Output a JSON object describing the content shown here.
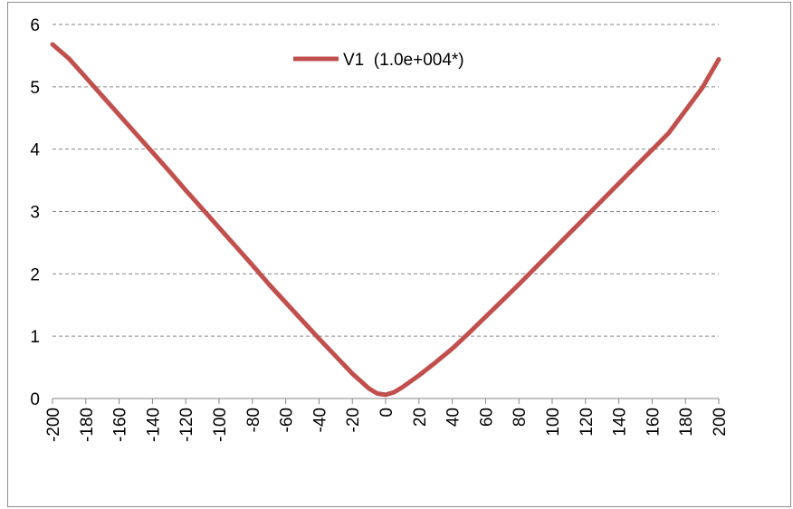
{
  "chart_data": {
    "type": "line",
    "title": "",
    "xlabel": "",
    "ylabel": "",
    "x_ticks": [
      "-200",
      "-180",
      "-160",
      "-140",
      "-120",
      "-100",
      "-80",
      "-60",
      "-40",
      "-20",
      "0",
      "20",
      "40",
      "60",
      "80",
      "100",
      "120",
      "140",
      "160",
      "180",
      "200"
    ],
    "y_ticks": [
      "0",
      "1",
      "2",
      "3",
      "4",
      "5",
      "6"
    ],
    "xlim": [
      -200,
      200
    ],
    "ylim": [
      0,
      6
    ],
    "grid": "horizontal dashed",
    "legend_position": "top-center",
    "series": [
      {
        "name": "V1  (1.0e+004*)",
        "color": "#c0504d",
        "x": [
          -200,
          -190,
          -180,
          -170,
          -160,
          -150,
          -140,
          -130,
          -120,
          -110,
          -100,
          -90,
          -80,
          -70,
          -60,
          -50,
          -40,
          -30,
          -20,
          -10,
          -5,
          0,
          5,
          10,
          20,
          30,
          40,
          50,
          60,
          70,
          80,
          90,
          100,
          110,
          120,
          130,
          140,
          150,
          160,
          170,
          180,
          190,
          200
        ],
        "y": [
          5.68,
          5.45,
          5.15,
          4.85,
          4.55,
          4.25,
          3.95,
          3.65,
          3.34,
          3.04,
          2.74,
          2.44,
          2.14,
          1.83,
          1.54,
          1.25,
          0.96,
          0.68,
          0.4,
          0.16,
          0.08,
          0.06,
          0.1,
          0.18,
          0.37,
          0.58,
          0.8,
          1.05,
          1.31,
          1.57,
          1.83,
          2.1,
          2.37,
          2.64,
          2.91,
          3.18,
          3.45,
          3.72,
          3.99,
          4.26,
          4.62,
          4.98,
          5.44
        ]
      }
    ]
  }
}
